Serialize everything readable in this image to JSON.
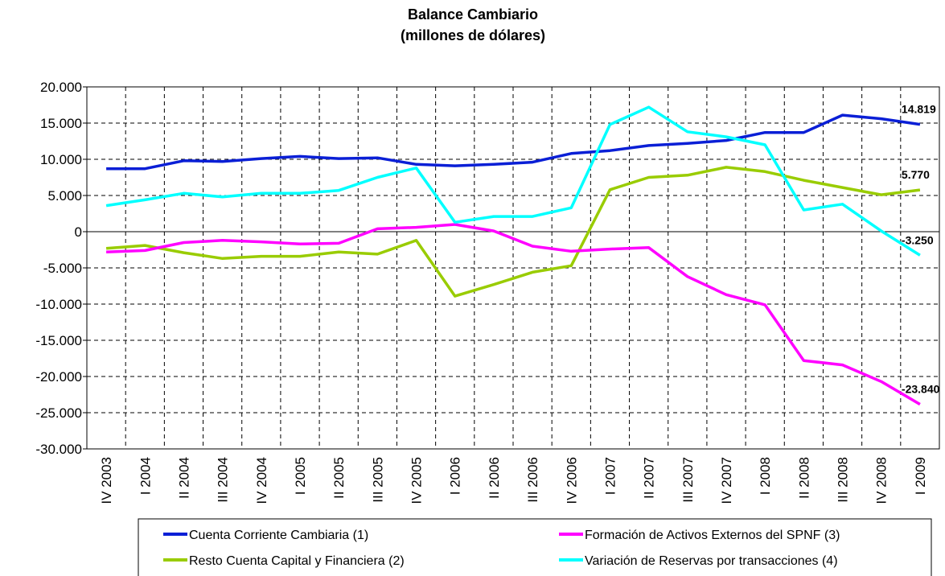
{
  "chart_data": {
    "type": "line",
    "title": "Balance Cambiario",
    "subtitle": "(millones de dólares)",
    "categories": [
      "IV 2003",
      "I 2004",
      "II 2004",
      "III 2004",
      "IV 2004",
      "I 2005",
      "II 2005",
      "III 2005",
      "IV 2005",
      "I 2006",
      "II 2006",
      "III 2006",
      "IV 2006",
      "I 2007",
      "II 2007",
      "III 2007",
      "IV 2007",
      "I 2008",
      "II 2008",
      "III 2008",
      "IV 2008",
      "I 2009"
    ],
    "series": [
      {
        "name": "Cuenta Corriente Cambiaria (1)",
        "color": "#0a1fd6",
        "values": [
          8700,
          8700,
          9800,
          9700,
          10100,
          10400,
          10100,
          10200,
          9300,
          9100,
          9300,
          9600,
          10800,
          11200,
          11900,
          12200,
          12600,
          13700,
          13700,
          16100,
          15600,
          14819
        ],
        "value_labels": [
          null,
          null,
          null,
          null,
          null,
          null,
          null,
          null,
          null,
          null,
          null,
          null,
          null,
          null,
          null,
          null,
          null,
          null,
          null,
          null,
          null,
          "14.819"
        ]
      },
      {
        "name": "Resto Cuenta Capital y Financiera (2)",
        "color": "#99cc00",
        "values": [
          -2300,
          -1900,
          -2900,
          -3700,
          -3400,
          -3400,
          -2800,
          -3100,
          -1200,
          -8900,
          -7300,
          -5600,
          -4700,
          5800,
          7500,
          7800,
          8900,
          8300,
          7100,
          6100,
          5100,
          5770
        ],
        "value_labels": [
          null,
          null,
          null,
          null,
          null,
          null,
          null,
          null,
          null,
          null,
          null,
          null,
          null,
          null,
          null,
          null,
          null,
          null,
          null,
          null,
          null,
          "5.770"
        ]
      },
      {
        "name": "Formación de Activos Externos del SPNF (3)",
        "color": "#ff00ff",
        "values": [
          -2800,
          -2600,
          -1500,
          -1200,
          -1400,
          -1700,
          -1600,
          400,
          600,
          1000,
          100,
          -2000,
          -2700,
          -2400,
          -2200,
          -6200,
          -8700,
          -10100,
          -17800,
          -18400,
          -20700,
          -23840
        ],
        "value_labels": [
          null,
          null,
          null,
          null,
          null,
          null,
          null,
          null,
          null,
          null,
          null,
          null,
          null,
          null,
          null,
          null,
          null,
          null,
          null,
          null,
          null,
          "-23.840"
        ]
      },
      {
        "name": "Variación de Reservas por transacciones (4)",
        "color": "#00ffff",
        "values": [
          3600,
          4400,
          5300,
          4800,
          5300,
          5300,
          5700,
          7500,
          8800,
          1300,
          2100,
          2100,
          3300,
          14800,
          17200,
          13800,
          13100,
          12000,
          3000,
          3800,
          100,
          -3250
        ],
        "value_labels": [
          null,
          null,
          null,
          null,
          null,
          null,
          null,
          null,
          null,
          null,
          null,
          null,
          null,
          null,
          null,
          null,
          null,
          null,
          null,
          null,
          null,
          "-3.250"
        ]
      }
    ],
    "ylim": [
      -30000,
      20000
    ],
    "yticks": [
      {
        "value": -30000,
        "label": "-30.000"
      },
      {
        "value": -25000,
        "label": "-25.000"
      },
      {
        "value": -20000,
        "label": "-20.000"
      },
      {
        "value": -15000,
        "label": "-15.000"
      },
      {
        "value": -10000,
        "label": "-10.000"
      },
      {
        "value": -5000,
        "label": "-5.000"
      },
      0,
      {
        "value": 5000,
        "label": "5.000"
      },
      {
        "value": 10000,
        "label": "10.000"
      },
      {
        "value": 15000,
        "label": "15.000"
      },
      {
        "value": 20000,
        "label": "20.000"
      }
    ],
    "grid": true,
    "legend": "bottom"
  }
}
